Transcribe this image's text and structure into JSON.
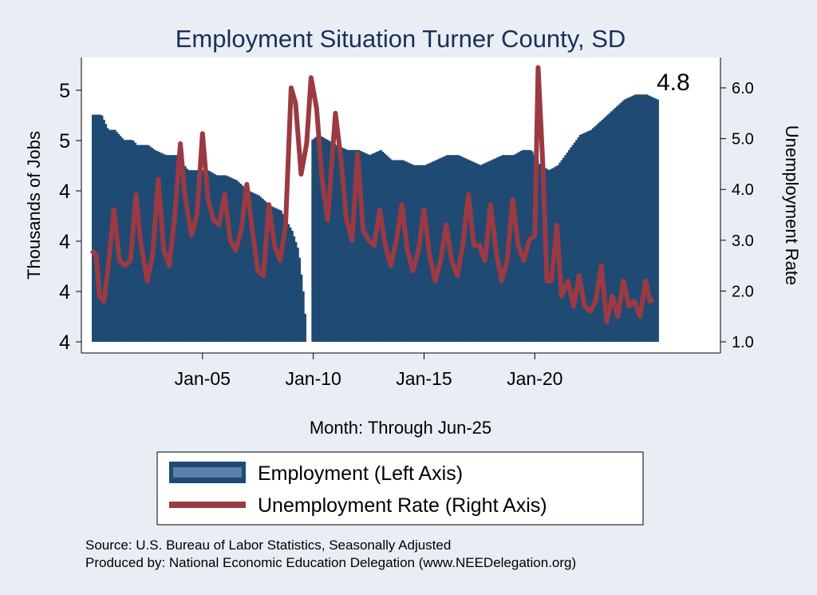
{
  "chart_data": {
    "type": "bar+line",
    "title": "Employment Situation Turner  County, SD",
    "xlabel": "Month: Through Jun-25",
    "ylabel_left": "Thousands of Jobs",
    "ylabel_right": "Unemployment Rate",
    "left_ticks": [
      "4",
      "4",
      "4",
      "4",
      "5",
      "5"
    ],
    "right_ticks": [
      "1.0",
      "2.0",
      "3.0",
      "4.0",
      "5.0",
      "6.0"
    ],
    "right_ylim": [
      1.0,
      6.0
    ],
    "left_ylim": [
      3.96,
      4.46
    ],
    "x_ticks": [
      "Jan-05",
      "Jan-10",
      "Jan-15",
      "Jan-20"
    ],
    "x_tick_years": [
      2005,
      2010,
      2015,
      2020
    ],
    "x_range": [
      2000.0,
      2025.5
    ],
    "last_value_label": "4.8",
    "series": [
      {
        "name": "Employment (Left Axis)",
        "kind": "bar",
        "color": "#1f4a73",
        "points": [
          [
            2000.0,
            4.41
          ],
          [
            2000.4,
            4.41
          ],
          [
            2000.7,
            4.38
          ],
          [
            2001.0,
            4.38
          ],
          [
            2001.4,
            4.36
          ],
          [
            2001.8,
            4.36
          ],
          [
            2002.0,
            4.35
          ],
          [
            2002.5,
            4.35
          ],
          [
            2002.8,
            4.34
          ],
          [
            2003.3,
            4.33
          ],
          [
            2003.8,
            4.33
          ],
          [
            2004.3,
            4.3
          ],
          [
            2004.8,
            4.3
          ],
          [
            2005.2,
            4.3
          ],
          [
            2005.6,
            4.29
          ],
          [
            2006.0,
            4.29
          ],
          [
            2006.5,
            4.28
          ],
          [
            2007.0,
            4.26
          ],
          [
            2007.5,
            4.25
          ],
          [
            2008.0,
            4.23
          ],
          [
            2008.5,
            4.22
          ],
          [
            2009.0,
            4.18
          ],
          [
            2009.3,
            4.14
          ],
          [
            2009.5,
            4.06
          ],
          [
            2009.65,
            3.98
          ],
          [
            2009.75,
            3.955
          ],
          [
            2009.9,
            4.36
          ],
          [
            2010.2,
            4.37
          ],
          [
            2010.6,
            4.36
          ],
          [
            2011.0,
            4.35
          ],
          [
            2011.5,
            4.34
          ],
          [
            2012.0,
            4.34
          ],
          [
            2012.5,
            4.33
          ],
          [
            2013.0,
            4.34
          ],
          [
            2013.5,
            4.32
          ],
          [
            2014.0,
            4.32
          ],
          [
            2014.5,
            4.31
          ],
          [
            2015.0,
            4.31
          ],
          [
            2015.5,
            4.32
          ],
          [
            2016.0,
            4.33
          ],
          [
            2016.5,
            4.33
          ],
          [
            2017.0,
            4.32
          ],
          [
            2017.5,
            4.31
          ],
          [
            2018.0,
            4.32
          ],
          [
            2018.5,
            4.33
          ],
          [
            2019.0,
            4.33
          ],
          [
            2019.4,
            4.34
          ],
          [
            2019.8,
            4.34
          ],
          [
            2020.2,
            4.31
          ],
          [
            2020.6,
            4.3
          ],
          [
            2021.0,
            4.31
          ],
          [
            2021.5,
            4.34
          ],
          [
            2022.0,
            4.37
          ],
          [
            2022.5,
            4.38
          ],
          [
            2023.0,
            4.4
          ],
          [
            2023.5,
            4.42
          ],
          [
            2024.0,
            4.44
          ],
          [
            2024.5,
            4.45
          ],
          [
            2025.0,
            4.45
          ],
          [
            2025.5,
            4.44
          ]
        ]
      },
      {
        "name": "Unemployment Rate (Right Axis)",
        "kind": "line",
        "color": "#9b3a42",
        "points": [
          [
            2000.0,
            2.8
          ],
          [
            2000.2,
            2.7
          ],
          [
            2000.35,
            1.9
          ],
          [
            2000.55,
            1.8
          ],
          [
            2000.75,
            2.5
          ],
          [
            2001.0,
            3.6
          ],
          [
            2001.25,
            2.6
          ],
          [
            2001.5,
            2.5
          ],
          [
            2001.75,
            2.6
          ],
          [
            2002.0,
            3.9
          ],
          [
            2002.2,
            3.0
          ],
          [
            2002.5,
            2.2
          ],
          [
            2002.75,
            2.7
          ],
          [
            2003.0,
            4.2
          ],
          [
            2003.25,
            2.8
          ],
          [
            2003.5,
            2.5
          ],
          [
            2003.75,
            3.5
          ],
          [
            2004.0,
            4.9
          ],
          [
            2004.2,
            3.9
          ],
          [
            2004.5,
            3.1
          ],
          [
            2004.75,
            3.5
          ],
          [
            2005.0,
            5.1
          ],
          [
            2005.25,
            3.8
          ],
          [
            2005.5,
            3.4
          ],
          [
            2005.75,
            3.3
          ],
          [
            2006.0,
            3.9
          ],
          [
            2006.25,
            3.0
          ],
          [
            2006.5,
            2.8
          ],
          [
            2006.75,
            3.2
          ],
          [
            2007.0,
            4.1
          ],
          [
            2007.25,
            3.2
          ],
          [
            2007.5,
            2.4
          ],
          [
            2007.75,
            2.3
          ],
          [
            2008.0,
            3.7
          ],
          [
            2008.25,
            2.9
          ],
          [
            2008.5,
            2.6
          ],
          [
            2008.75,
            3.3
          ],
          [
            2009.0,
            6.0
          ],
          [
            2009.2,
            5.7
          ],
          [
            2009.45,
            4.3
          ],
          [
            2009.7,
            4.9
          ],
          [
            2009.9,
            6.2
          ],
          [
            2010.15,
            5.6
          ],
          [
            2010.4,
            4.2
          ],
          [
            2010.65,
            3.4
          ],
          [
            2011.0,
            5.5
          ],
          [
            2011.25,
            4.6
          ],
          [
            2011.5,
            3.4
          ],
          [
            2011.75,
            3.0
          ],
          [
            2012.0,
            4.7
          ],
          [
            2012.25,
            3.2
          ],
          [
            2012.5,
            3.0
          ],
          [
            2012.75,
            2.9
          ],
          [
            2013.0,
            3.6
          ],
          [
            2013.25,
            2.9
          ],
          [
            2013.5,
            2.5
          ],
          [
            2013.75,
            3.0
          ],
          [
            2014.0,
            3.7
          ],
          [
            2014.25,
            2.8
          ],
          [
            2014.5,
            2.4
          ],
          [
            2014.75,
            2.8
          ],
          [
            2015.0,
            3.6
          ],
          [
            2015.25,
            2.7
          ],
          [
            2015.5,
            2.2
          ],
          [
            2015.75,
            2.6
          ],
          [
            2016.0,
            3.3
          ],
          [
            2016.25,
            2.6
          ],
          [
            2016.5,
            2.3
          ],
          [
            2016.75,
            2.9
          ],
          [
            2017.0,
            3.9
          ],
          [
            2017.25,
            2.9
          ],
          [
            2017.5,
            2.9
          ],
          [
            2017.75,
            2.6
          ],
          [
            2018.0,
            3.7
          ],
          [
            2018.25,
            2.8
          ],
          [
            2018.5,
            2.2
          ],
          [
            2018.75,
            2.6
          ],
          [
            2019.0,
            3.8
          ],
          [
            2019.25,
            2.9
          ],
          [
            2019.5,
            2.6
          ],
          [
            2019.75,
            3.0
          ],
          [
            2020.0,
            3.1
          ],
          [
            2020.15,
            6.4
          ],
          [
            2020.35,
            4.6
          ],
          [
            2020.55,
            2.2
          ],
          [
            2020.75,
            2.2
          ],
          [
            2021.0,
            3.3
          ],
          [
            2021.2,
            1.9
          ],
          [
            2021.5,
            2.2
          ],
          [
            2021.75,
            1.7
          ],
          [
            2022.0,
            2.3
          ],
          [
            2022.25,
            1.7
          ],
          [
            2022.5,
            1.6
          ],
          [
            2022.75,
            1.8
          ],
          [
            2023.0,
            2.5
          ],
          [
            2023.25,
            1.4
          ],
          [
            2023.5,
            1.9
          ],
          [
            2023.75,
            1.5
          ],
          [
            2024.0,
            2.2
          ],
          [
            2024.25,
            1.7
          ],
          [
            2024.5,
            1.8
          ],
          [
            2024.75,
            1.5
          ],
          [
            2025.0,
            2.2
          ],
          [
            2025.2,
            1.8
          ],
          [
            2025.35,
            1.85
          ]
        ]
      }
    ],
    "grid": false,
    "legend_position": "bottom"
  },
  "source_lines": [
    "Source: U.S. Bureau of Labor Statistics, Seasonally Adjusted",
    "Produced by: National Economic Education Delegation (www.NEEDelegation.org)"
  ]
}
